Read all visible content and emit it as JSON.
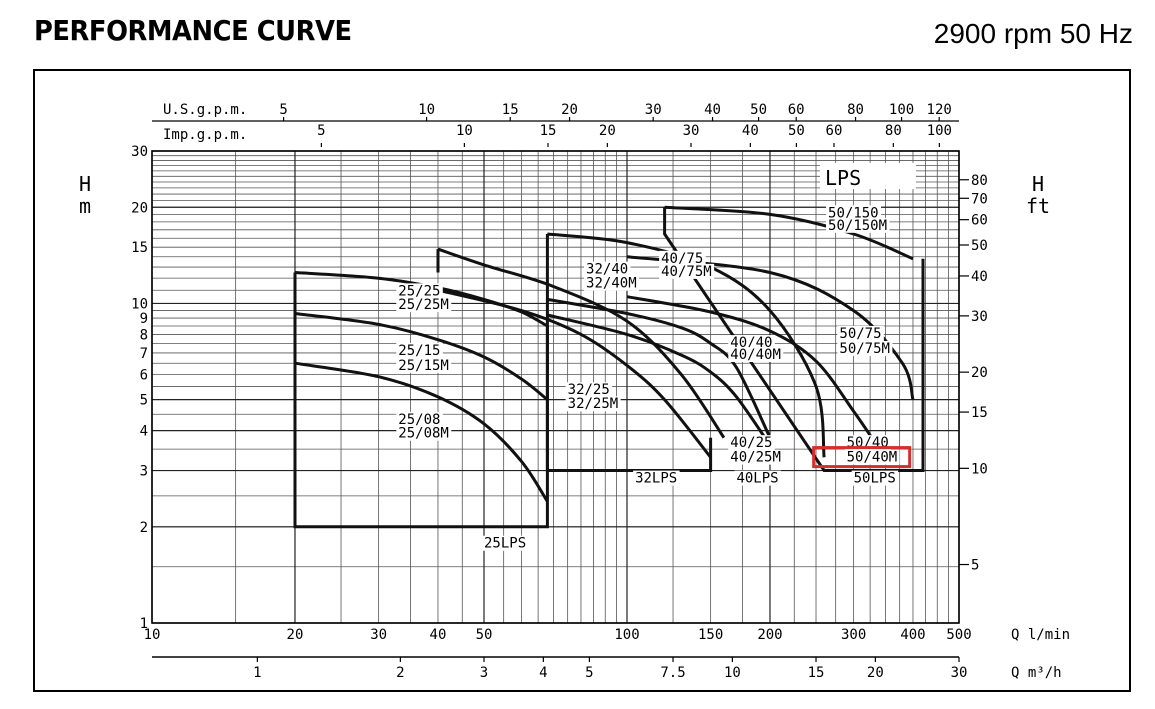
{
  "header": {
    "title": "PERFORMANCE CURVE",
    "speed": "2900 rpm 50 Hz"
  },
  "chart_data": {
    "type": "line",
    "title": "PERFORMANCE CURVE",
    "subtitle": "2900 rpm 50 Hz",
    "legend_label": "LPS",
    "x_axis": {
      "label": "Q l/min",
      "scale": "log",
      "range": [
        10,
        500
      ],
      "ticks": [
        "10",
        "20",
        "30",
        "40",
        "50",
        "100",
        "150",
        "200",
        "300",
        "400",
        "500"
      ]
    },
    "x_axis_m3h": {
      "label": "Q m³/h",
      "ticks": [
        "1",
        "2",
        "3",
        "4",
        "5",
        "7.5",
        "10",
        "15",
        "20",
        "30"
      ]
    },
    "x_axis_usgpm": {
      "label": "U.S.g.p.m.",
      "ticks": [
        "5",
        "10",
        "15",
        "20",
        "30",
        "40",
        "50",
        "60",
        "80",
        "100",
        "120"
      ]
    },
    "x_axis_impgpm": {
      "label": "Imp.g.p.m.",
      "ticks": [
        "5",
        "10",
        "15",
        "20",
        "30",
        "40",
        "50",
        "60",
        "80",
        "100"
      ]
    },
    "y_axis": {
      "label_top": "H",
      "label_unit": "m",
      "scale": "log",
      "range": [
        1,
        30
      ],
      "ticks": [
        "1",
        "2",
        "3",
        "4",
        "5",
        "6",
        "7",
        "8",
        "9",
        "10",
        "15",
        "20",
        "30"
      ]
    },
    "y_axis_ft": {
      "label_top": "H",
      "label_unit": "ft",
      "ticks": [
        "5",
        "10",
        "15",
        "20",
        "30",
        "40",
        "50",
        "60",
        "70",
        "80"
      ]
    },
    "series": [
      {
        "name": "25/25 25/25M",
        "labels": [
          "25/25",
          "25/25M"
        ],
        "x": [
          20,
          30,
          40,
          50,
          60,
          68
        ],
        "y": [
          12.5,
          12.0,
          11.2,
          10.3,
          9.4,
          8.5
        ]
      },
      {
        "name": "25/15 25/15M",
        "labels": [
          "25/15",
          "25/15M"
        ],
        "x": [
          20,
          30,
          40,
          50,
          60,
          68
        ],
        "y": [
          9.3,
          8.6,
          7.7,
          6.8,
          5.8,
          5.0
        ]
      },
      {
        "name": "25/08 25/08M",
        "labels": [
          "25/08",
          "25/08M"
        ],
        "x": [
          20,
          30,
          40,
          50,
          60,
          68
        ],
        "y": [
          6.5,
          5.9,
          5.1,
          4.2,
          3.2,
          2.4
        ]
      },
      {
        "name": "32/40 32/40M",
        "labels": [
          "32/40",
          "32/40M"
        ],
        "x": [
          40,
          50,
          70,
          100,
          130,
          160
        ],
        "y": [
          14.8,
          13.2,
          11.3,
          8.8,
          6.0,
          3.8
        ]
      },
      {
        "name": "32/25 32/25M",
        "labels": [
          "32/25",
          "32/25M"
        ],
        "x": [
          40,
          60,
          80,
          100,
          120,
          150
        ],
        "y": [
          11.0,
          9.5,
          8.0,
          6.4,
          5.0,
          3.3
        ]
      },
      {
        "name": "40/75 40/75M",
        "labels": [
          "40/75",
          "40/75M"
        ],
        "x": [
          68,
          100,
          150,
          200,
          250,
          260
        ],
        "y": [
          16.5,
          15.5,
          13.0,
          9.5,
          5.5,
          3.3
        ]
      },
      {
        "name": "40/40 40/40M",
        "labels": [
          "40/40",
          "40/40M"
        ],
        "x": [
          68,
          100,
          130,
          150,
          170,
          200
        ],
        "y": [
          10.3,
          9.3,
          8.4,
          7.5,
          6.3,
          3.8
        ]
      },
      {
        "name": "40/25 40/25M",
        "labels": [
          "40/25",
          "40/25M"
        ],
        "x": [
          68,
          100,
          130,
          150,
          170,
          200
        ],
        "y": [
          9.2,
          8.0,
          6.9,
          6.1,
          5.1,
          3.6
        ]
      },
      {
        "name": "50/150 50/150M",
        "labels": [
          "50/150",
          "50/150M"
        ],
        "x": [
          120,
          200,
          300,
          400
        ],
        "y": [
          20.0,
          19.0,
          16.5,
          13.8
        ]
      },
      {
        "name": "50/75 50/75M",
        "labels": [
          "50/75",
          "50/75M"
        ],
        "x": [
          100,
          200,
          300,
          380,
          400
        ],
        "y": [
          14.0,
          12.5,
          9.5,
          6.5,
          5.0
        ]
      },
      {
        "name": "50/40 50/40M",
        "labels": [
          "50/40",
          "50/40M"
        ],
        "x": [
          100,
          150,
          200,
          250,
          300,
          340
        ],
        "y": [
          10.5,
          9.4,
          8.2,
          6.6,
          4.6,
          3.5
        ]
      }
    ],
    "envelopes": [
      {
        "label": "25LPS",
        "x": [
          20,
          20,
          68,
          68
        ],
        "y": [
          12.5,
          2.0,
          2.0,
          8.5
        ]
      },
      {
        "label": "32LPS",
        "x": [
          40,
          40
        ],
        "y": [
          12.5,
          14.8
        ]
      },
      {
        "label": "40LPS",
        "x": [
          68,
          68,
          150,
          150
        ],
        "y": [
          16.5,
          3.0,
          3.0,
          3.8
        ]
      },
      {
        "label": "50LPS",
        "x": [
          120,
          120,
          260,
          260,
          420,
          420
        ],
        "y": [
          20.0,
          16.5,
          3.0,
          3.0,
          3.0,
          13.8
        ]
      }
    ],
    "highlight": {
      "label": "50/40M",
      "color": "#d32f2f"
    },
    "grid": true
  }
}
